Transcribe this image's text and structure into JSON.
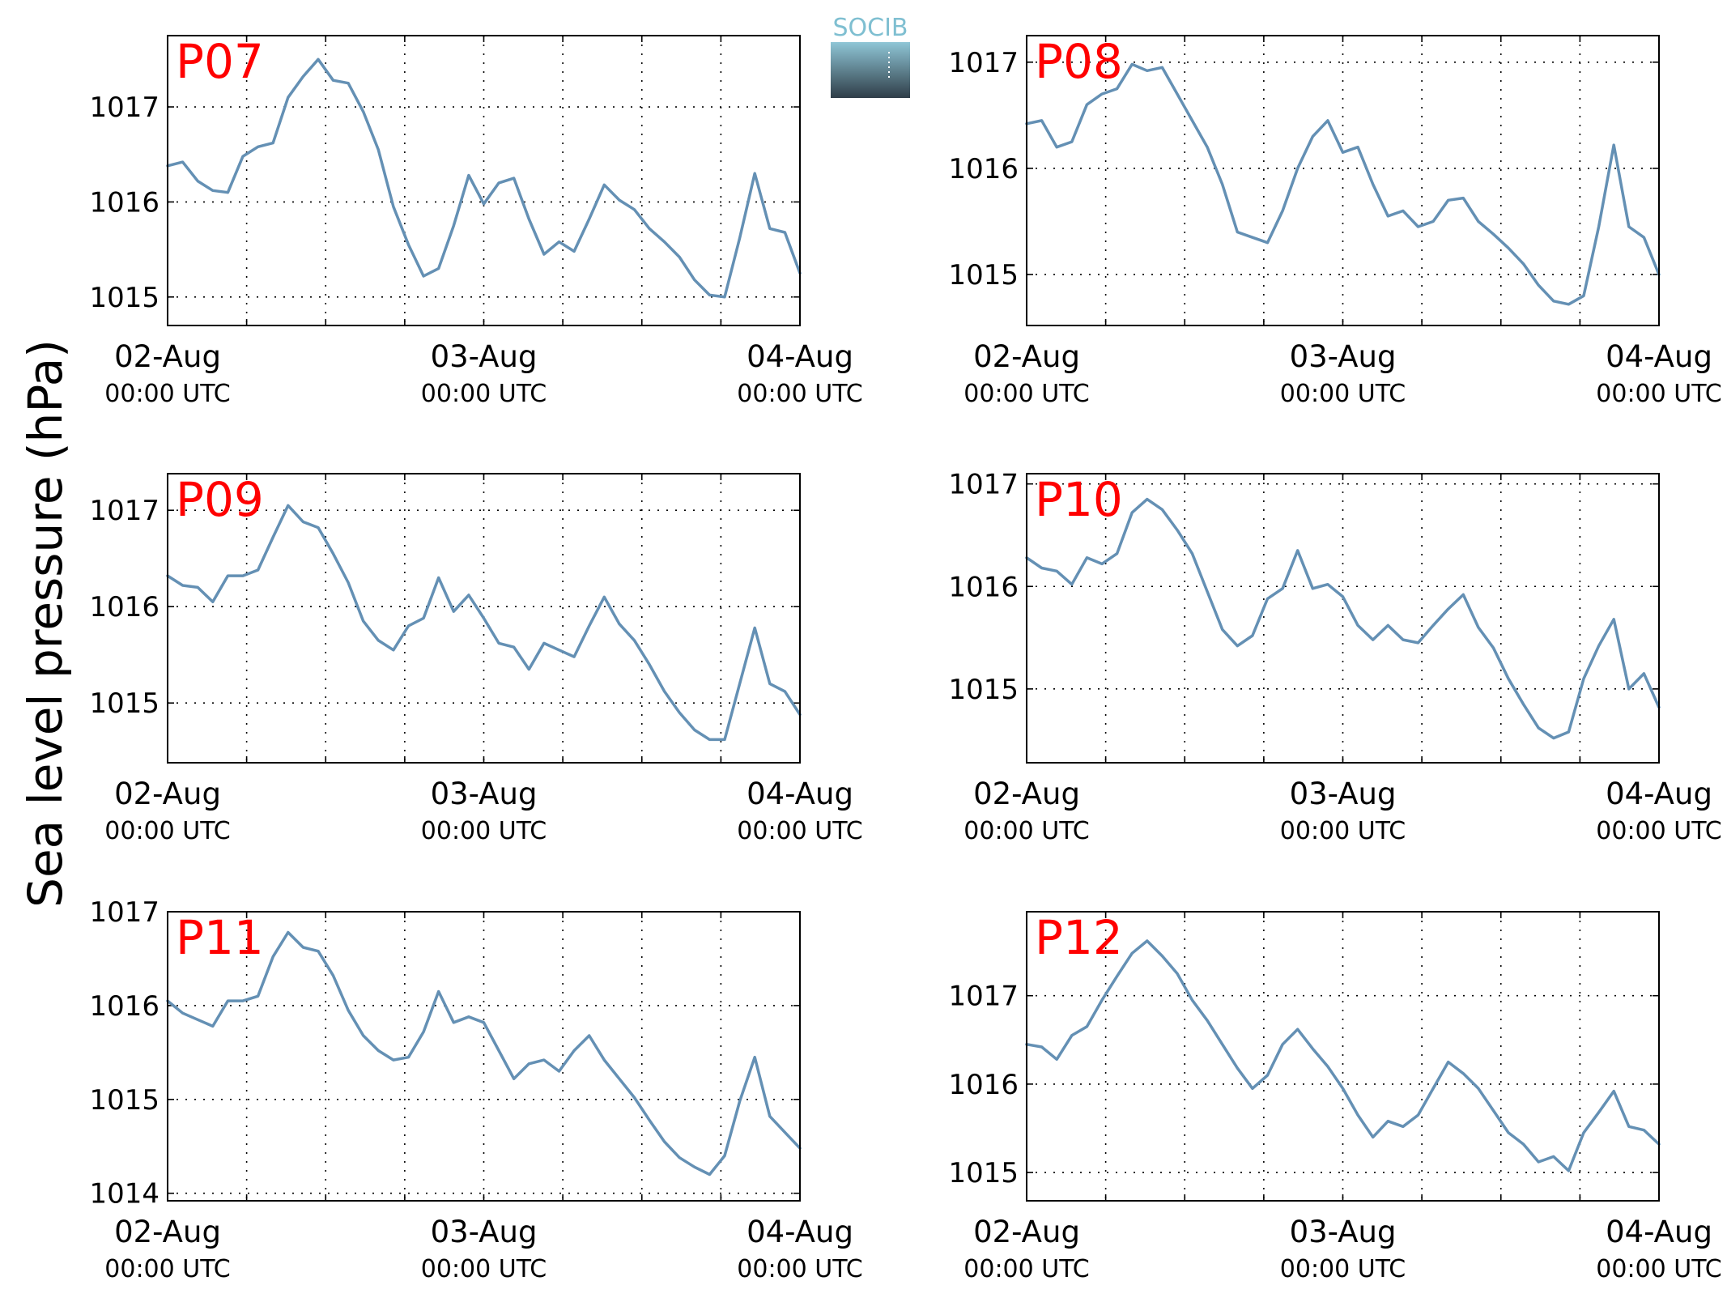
{
  "figure": {
    "ylabel": "Sea level pressure (hPa)",
    "logo_text": "SOCIB",
    "colors": {
      "line": "#6490b4",
      "panel_label": "#ff0000",
      "logo_top": "#7fbfd1",
      "logo_bottom": "#2f3d48"
    }
  },
  "chart_data": [
    {
      "type": "line",
      "panel_label": "P07",
      "x_ticks": [
        {
          "date": "02-Aug",
          "time": "00:00 UTC"
        },
        {
          "date": "03-Aug",
          "time": "00:00 UTC"
        },
        {
          "date": "04-Aug",
          "time": "00:00 UTC"
        }
      ],
      "x_start": "2013-08-02T00:00Z",
      "x_step_hours": 3,
      "y_ticks": [
        1015,
        1016,
        1017
      ],
      "ylim": [
        1014.7,
        1017.75
      ],
      "grid": true,
      "values": [
        1016.38,
        1016.42,
        1016.22,
        1016.12,
        1016.1,
        1016.48,
        1016.58,
        1016.62,
        1017.1,
        1017.32,
        1017.5,
        1017.28,
        1017.25,
        1016.95,
        1016.55,
        1015.95,
        1015.55,
        1015.22,
        1015.3,
        1015.75,
        1016.28,
        1015.98,
        1016.2,
        1016.25,
        1015.82,
        1015.45,
        1015.58,
        1015.48,
        1015.82,
        1016.18,
        1016.02,
        1015.92,
        1015.72,
        1015.58,
        1015.42,
        1015.18,
        1015.02,
        1015.0,
        1015.62,
        1016.3,
        1015.72,
        1015.68,
        1015.25
      ]
    },
    {
      "type": "line",
      "panel_label": "P08",
      "x_ticks": [
        {
          "date": "02-Aug",
          "time": "00:00 UTC"
        },
        {
          "date": "03-Aug",
          "time": "00:00 UTC"
        },
        {
          "date": "04-Aug",
          "time": "00:00 UTC"
        }
      ],
      "x_start": "2013-08-02T00:00Z",
      "x_step_hours": 3,
      "y_ticks": [
        1015,
        1016,
        1017
      ],
      "ylim": [
        1014.52,
        1017.25
      ],
      "grid": true,
      "values": [
        1016.42,
        1016.45,
        1016.2,
        1016.25,
        1016.6,
        1016.7,
        1016.75,
        1016.98,
        1016.92,
        1016.95,
        1016.7,
        1016.45,
        1016.2,
        1015.85,
        1015.4,
        1015.35,
        1015.3,
        1015.6,
        1016.0,
        1016.3,
        1016.45,
        1016.15,
        1016.2,
        1015.85,
        1015.55,
        1015.6,
        1015.45,
        1015.5,
        1015.7,
        1015.72,
        1015.5,
        1015.38,
        1015.25,
        1015.1,
        1014.9,
        1014.75,
        1014.72,
        1014.8,
        1015.45,
        1016.22,
        1015.45,
        1015.35,
        1015.0
      ]
    },
    {
      "type": "line",
      "panel_label": "P09",
      "x_ticks": [
        {
          "date": "02-Aug",
          "time": "00:00 UTC"
        },
        {
          "date": "03-Aug",
          "time": "00:00 UTC"
        },
        {
          "date": "04-Aug",
          "time": "00:00 UTC"
        }
      ],
      "x_start": "2013-08-02T00:00Z",
      "x_step_hours": 3,
      "y_ticks": [
        1015,
        1016,
        1017
      ],
      "ylim": [
        1014.38,
        1017.38
      ],
      "grid": true,
      "values": [
        1016.32,
        1016.22,
        1016.2,
        1016.05,
        1016.32,
        1016.32,
        1016.38,
        1016.72,
        1017.05,
        1016.88,
        1016.82,
        1016.55,
        1016.25,
        1015.85,
        1015.65,
        1015.55,
        1015.8,
        1015.88,
        1016.3,
        1015.95,
        1016.12,
        1015.88,
        1015.62,
        1015.58,
        1015.35,
        1015.62,
        1015.55,
        1015.48,
        1015.8,
        1016.1,
        1015.82,
        1015.65,
        1015.4,
        1015.12,
        1014.9,
        1014.72,
        1014.62,
        1014.62,
        1015.2,
        1015.78,
        1015.2,
        1015.12,
        1014.88
      ]
    },
    {
      "type": "line",
      "panel_label": "P10",
      "x_ticks": [
        {
          "date": "02-Aug",
          "time": "00:00 UTC"
        },
        {
          "date": "03-Aug",
          "time": "00:00 UTC"
        },
        {
          "date": "04-Aug",
          "time": "00:00 UTC"
        }
      ],
      "x_start": "2013-08-02T00:00Z",
      "x_step_hours": 3,
      "y_ticks": [
        1015,
        1016,
        1017
      ],
      "ylim": [
        1014.28,
        1017.1
      ],
      "grid": true,
      "values": [
        1016.28,
        1016.18,
        1016.15,
        1016.02,
        1016.28,
        1016.22,
        1016.32,
        1016.72,
        1016.85,
        1016.75,
        1016.55,
        1016.32,
        1015.95,
        1015.58,
        1015.42,
        1015.52,
        1015.88,
        1015.98,
        1016.35,
        1015.98,
        1016.02,
        1015.9,
        1015.62,
        1015.48,
        1015.62,
        1015.48,
        1015.45,
        1015.62,
        1015.78,
        1015.92,
        1015.6,
        1015.4,
        1015.1,
        1014.85,
        1014.62,
        1014.52,
        1014.58,
        1015.1,
        1015.42,
        1015.68,
        1015.0,
        1015.15,
        1014.82
      ]
    },
    {
      "type": "line",
      "panel_label": "P11",
      "x_ticks": [
        {
          "date": "02-Aug",
          "time": "00:00 UTC"
        },
        {
          "date": "03-Aug",
          "time": "00:00 UTC"
        },
        {
          "date": "04-Aug",
          "time": "00:00 UTC"
        }
      ],
      "x_start": "2013-08-02T00:00Z",
      "x_step_hours": 3,
      "y_ticks": [
        1014,
        1015,
        1016,
        1017
      ],
      "ylim": [
        1013.92,
        1017.0
      ],
      "grid": true,
      "values": [
        1016.05,
        1015.92,
        1015.85,
        1015.78,
        1016.05,
        1016.05,
        1016.1,
        1016.52,
        1016.78,
        1016.62,
        1016.58,
        1016.32,
        1015.95,
        1015.68,
        1015.52,
        1015.42,
        1015.45,
        1015.72,
        1016.15,
        1015.82,
        1015.88,
        1015.82,
        1015.52,
        1015.22,
        1015.38,
        1015.42,
        1015.3,
        1015.52,
        1015.68,
        1015.42,
        1015.22,
        1015.02,
        1014.78,
        1014.55,
        1014.38,
        1014.28,
        1014.2,
        1014.4,
        1014.98,
        1015.45,
        1014.82,
        1014.65,
        1014.48
      ]
    },
    {
      "type": "line",
      "panel_label": "P12",
      "x_ticks": [
        {
          "date": "02-Aug",
          "time": "00:00 UTC"
        },
        {
          "date": "03-Aug",
          "time": "00:00 UTC"
        },
        {
          "date": "04-Aug",
          "time": "00:00 UTC"
        }
      ],
      "x_start": "2013-08-02T00:00Z",
      "x_step_hours": 3,
      "y_ticks": [
        1015,
        1016,
        1017
      ],
      "ylim": [
        1014.68,
        1017.95
      ],
      "grid": true,
      "values": [
        1016.45,
        1016.42,
        1016.28,
        1016.55,
        1016.65,
        1016.95,
        1017.22,
        1017.48,
        1017.62,
        1017.45,
        1017.25,
        1016.95,
        1016.72,
        1016.45,
        1016.18,
        1015.95,
        1016.1,
        1016.45,
        1016.62,
        1016.4,
        1016.2,
        1015.95,
        1015.65,
        1015.4,
        1015.58,
        1015.52,
        1015.65,
        1015.95,
        1016.25,
        1016.12,
        1015.95,
        1015.7,
        1015.45,
        1015.32,
        1015.12,
        1015.18,
        1015.02,
        1015.45,
        1015.68,
        1015.92,
        1015.52,
        1015.48,
        1015.32
      ]
    }
  ]
}
